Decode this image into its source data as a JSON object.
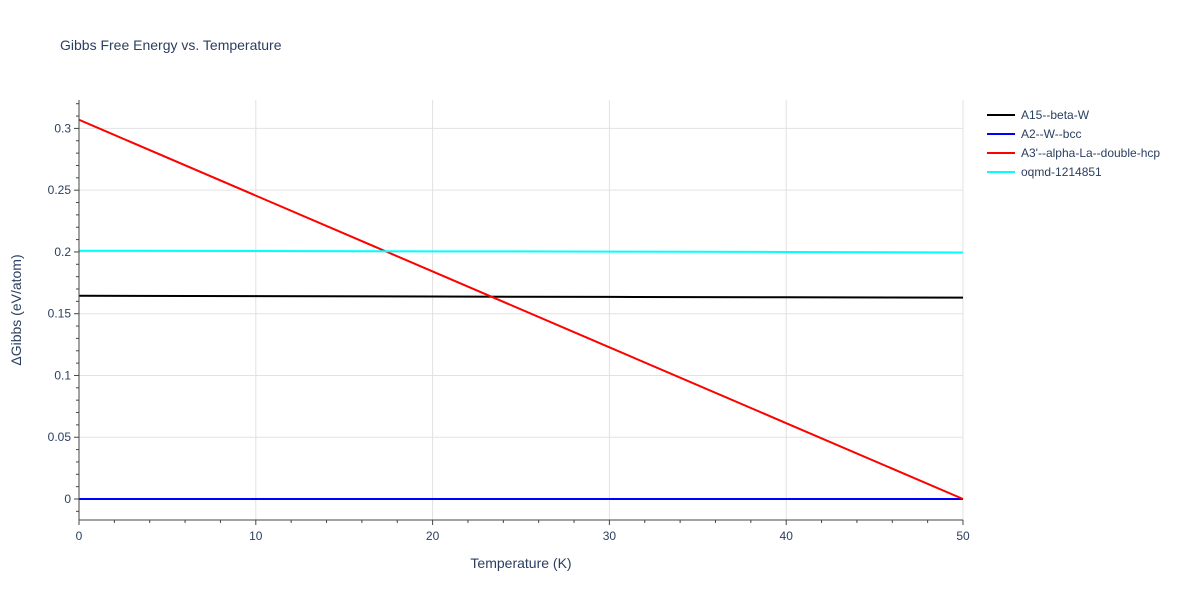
{
  "chart_data": {
    "type": "line",
    "title": "Gibbs Free Energy vs. Temperature",
    "xlabel": "Temperature (K)",
    "ylabel": "ΔGibbs (eV/atom)",
    "xlim": [
      0,
      50
    ],
    "ylim": [
      -0.017,
      0.323
    ],
    "x_ticks": [
      0,
      10,
      20,
      30,
      40,
      50
    ],
    "y_ticks": [
      0,
      0.05,
      0.1,
      0.15,
      0.2,
      0.25,
      0.3
    ],
    "grid": true,
    "legend_position": "top-right",
    "series": [
      {
        "name": "A15--beta-W",
        "color": "#000000",
        "x": [
          0,
          10,
          20,
          30,
          40,
          50
        ],
        "y": [
          0.1645,
          0.1642,
          0.1639,
          0.1636,
          0.1633,
          0.163
        ]
      },
      {
        "name": "A2--W--bcc",
        "color": "#0000ff",
        "x": [
          0,
          10,
          20,
          30,
          40,
          50
        ],
        "y": [
          0,
          0,
          0,
          0,
          0,
          0
        ]
      },
      {
        "name": "A3'--alpha-La--double-hcp",
        "color": "#ff0000",
        "x": [
          0,
          10,
          20,
          30,
          40,
          50
        ],
        "y": [
          0.307,
          0.2456,
          0.1842,
          0.1228,
          0.0614,
          0
        ]
      },
      {
        "name": "oqmd-1214851",
        "color": "#00ffff",
        "x": [
          0,
          10,
          20,
          30,
          40,
          50
        ],
        "y": [
          0.201,
          0.2008,
          0.2005,
          0.2003,
          0.2,
          0.1995
        ]
      }
    ]
  }
}
